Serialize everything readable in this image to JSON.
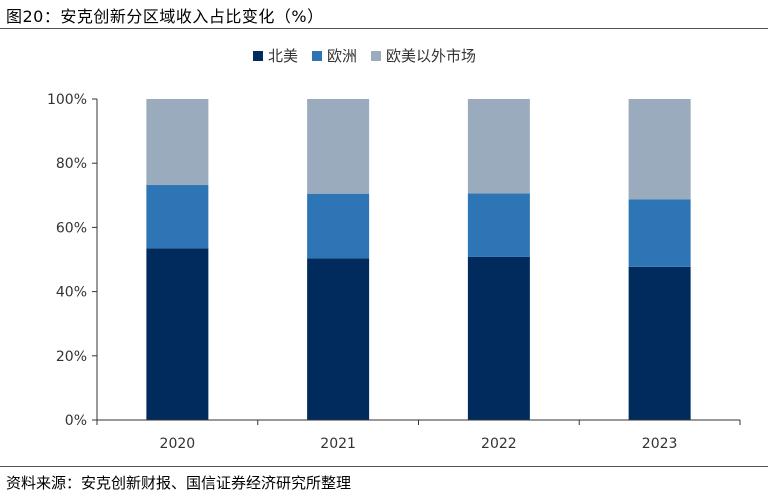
{
  "header": {
    "title": "图20：安克创新分区域收入占比变化（%）"
  },
  "footer": {
    "source": "资料来源：安克创新财报、国信证券经济研究所整理"
  },
  "chart_data": {
    "type": "bar",
    "stacked": true,
    "categories": [
      "2020",
      "2021",
      "2022",
      "2023"
    ],
    "series": [
      {
        "name": "北美",
        "values": [
          53.5,
          50.3,
          50.8,
          47.7
        ],
        "color": "#002b5c"
      },
      {
        "name": "欧洲",
        "values": [
          19.7,
          20.2,
          19.8,
          21.0
        ],
        "color": "#2e75b6"
      },
      {
        "name": "欧美以外市场",
        "values": [
          26.8,
          29.5,
          29.4,
          31.3
        ],
        "color": "#9aabbd"
      }
    ],
    "yticks": [
      "0%",
      "20%",
      "40%",
      "60%",
      "80%",
      "100%"
    ],
    "ylim": [
      0,
      100
    ],
    "legend": "top-center",
    "grid": false
  }
}
